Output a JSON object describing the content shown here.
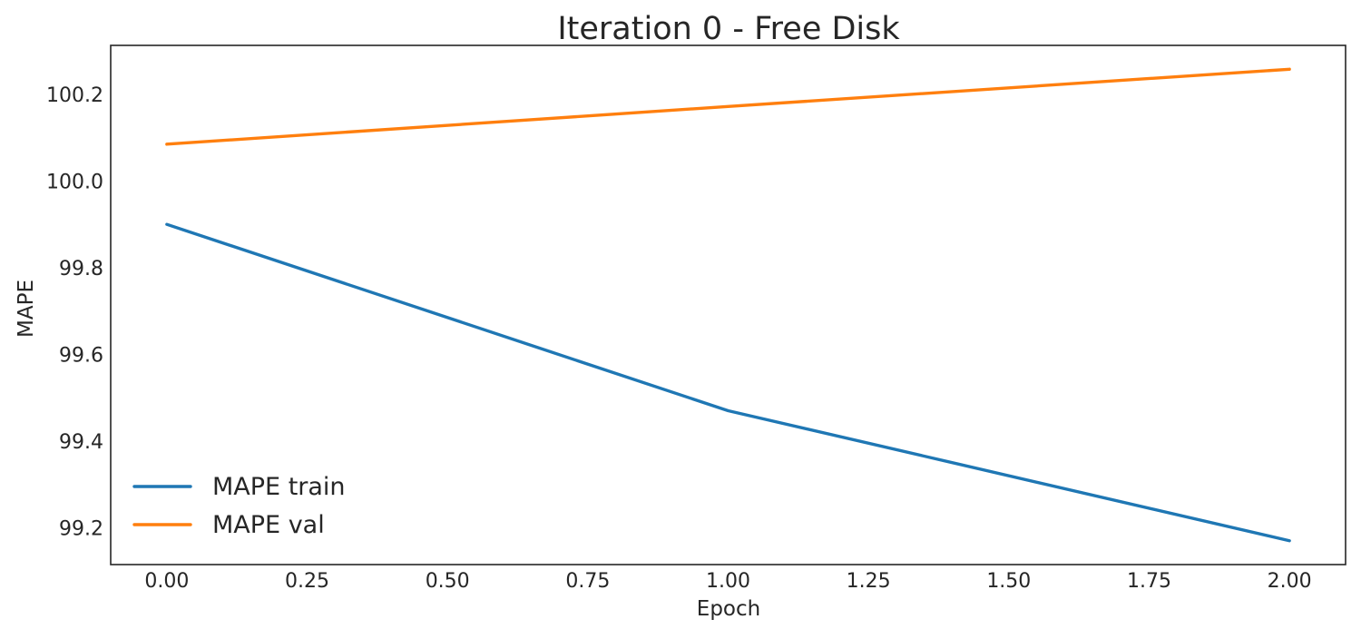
{
  "chart_data": {
    "type": "line",
    "title": "Iteration 0 - Free Disk",
    "xlabel": "Epoch",
    "ylabel": "MAPE",
    "x": [
      0,
      1,
      2
    ],
    "series": [
      {
        "name": "MAPE train",
        "color": "#1f77b4",
        "values": [
          99.9,
          99.47,
          99.17
        ]
      },
      {
        "name": "MAPE val",
        "color": "#ff7f0e",
        "values": [
          100.085,
          100.172,
          100.258
        ]
      }
    ],
    "xlim": [
      -0.1,
      2.1
    ],
    "ylim": [
      99.115,
      100.313
    ],
    "xticks": [
      {
        "value": 0.0,
        "label": "0.00"
      },
      {
        "value": 0.25,
        "label": "0.25"
      },
      {
        "value": 0.5,
        "label": "0.50"
      },
      {
        "value": 0.75,
        "label": "0.75"
      },
      {
        "value": 1.0,
        "label": "1.00"
      },
      {
        "value": 1.25,
        "label": "1.25"
      },
      {
        "value": 1.5,
        "label": "1.50"
      },
      {
        "value": 1.75,
        "label": "1.75"
      },
      {
        "value": 2.0,
        "label": "2.00"
      }
    ],
    "yticks": [
      {
        "value": 99.2,
        "label": "99.2"
      },
      {
        "value": 99.4,
        "label": "99.4"
      },
      {
        "value": 99.6,
        "label": "99.6"
      },
      {
        "value": 99.8,
        "label": "99.8"
      },
      {
        "value": 100.0,
        "label": "100.0"
      },
      {
        "value": 100.2,
        "label": "100.2"
      }
    ],
    "grid": false,
    "legend_position": "lower-left"
  }
}
